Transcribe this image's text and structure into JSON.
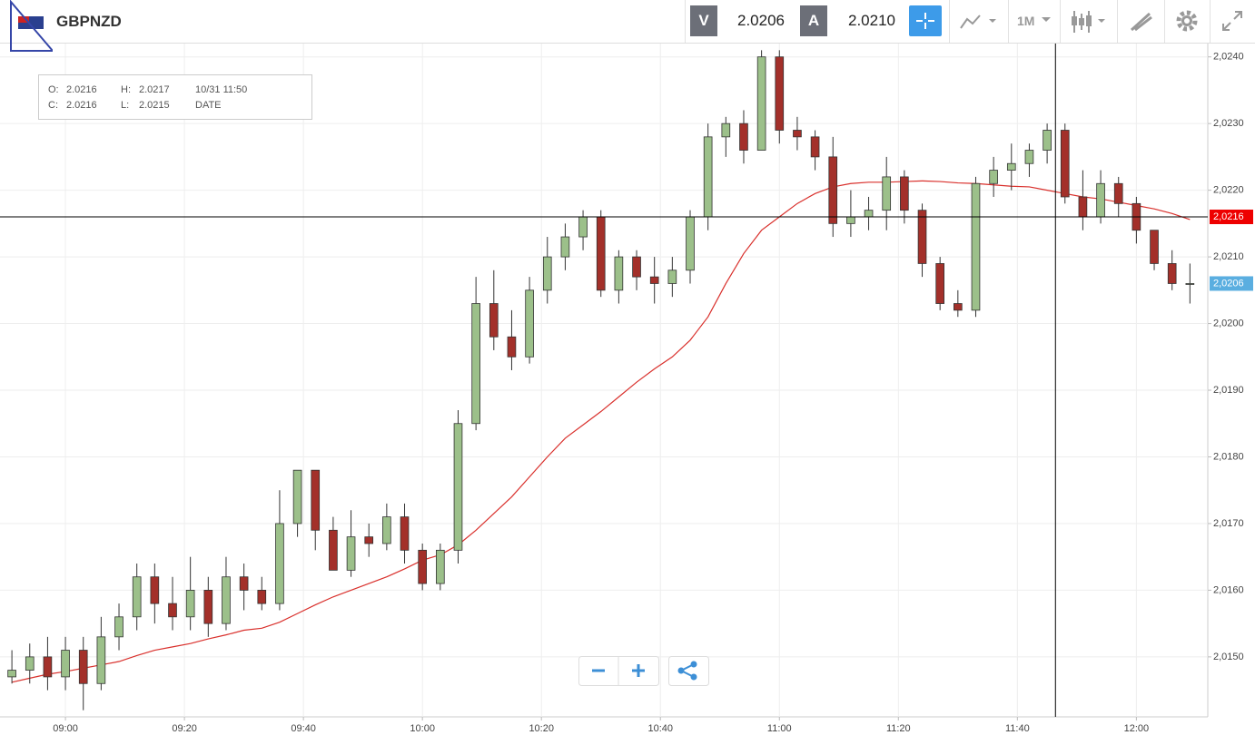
{
  "header": {
    "symbol": "GBPNZD",
    "bid_label": "V",
    "bid": "2.0206",
    "ask_label": "A",
    "ask": "2.0210",
    "period": "1M"
  },
  "info": {
    "open_label": "O:",
    "open": "2.0216",
    "high_label": "H:",
    "high": "2.0217",
    "date": "10/31 11:50",
    "close_label": "C:",
    "close": "2.0216",
    "low_label": "L:",
    "low": "2.0215",
    "date_label": "DATE"
  },
  "chart_data": {
    "type": "candlestick",
    "x": [
      531,
      534,
      537,
      540,
      543,
      546,
      549,
      552,
      555,
      558,
      561,
      564,
      567,
      570,
      573,
      576,
      579,
      582,
      585,
      588,
      591,
      594,
      597,
      600,
      603,
      606,
      609,
      612,
      615,
      618,
      621,
      624,
      627,
      630,
      633,
      636,
      639,
      642,
      645,
      648,
      651,
      654,
      657,
      660,
      663,
      666,
      669,
      672,
      675,
      678,
      681,
      684,
      687,
      690,
      693,
      696,
      699,
      702,
      705,
      708,
      711,
      714,
      717,
      720,
      723,
      726,
      729
    ],
    "open": [
      2.0147,
      2.0148,
      2.015,
      2.0147,
      2.0151,
      2.0146,
      2.0153,
      2.0156,
      2.0162,
      2.0158,
      2.0156,
      2.016,
      2.0155,
      2.0162,
      2.016,
      2.0158,
      2.017,
      2.0178,
      2.0169,
      2.0163,
      2.0168,
      2.0167,
      2.0171,
      2.0166,
      2.0161,
      2.0166,
      2.0185,
      2.0203,
      2.0198,
      2.0195,
      2.0205,
      2.021,
      2.0213,
      2.0216,
      2.0205,
      2.021,
      2.0207,
      2.0206,
      2.0208,
      2.0216,
      2.0228,
      2.023,
      2.0226,
      2.024,
      2.0229,
      2.0228,
      2.0225,
      2.0215,
      2.0216,
      2.0217,
      2.0222,
      2.0217,
      2.0209,
      2.0203,
      2.0202,
      2.0221,
      2.0223,
      2.0224,
      2.0226,
      2.0229,
      2.0219,
      2.0216,
      2.0221,
      2.0218,
      2.0214,
      2.0209,
      2.0206
    ],
    "high": [
      2.0151,
      2.0152,
      2.0153,
      2.0153,
      2.0153,
      2.0156,
      2.0158,
      2.0164,
      2.0164,
      2.0162,
      2.0165,
      2.0162,
      2.0165,
      2.0164,
      2.0162,
      2.0175,
      2.0178,
      2.0178,
      2.0171,
      2.0172,
      2.017,
      2.0173,
      2.0173,
      2.0167,
      2.0167,
      2.0187,
      2.0207,
      2.0208,
      2.0202,
      2.0207,
      2.0213,
      2.0215,
      2.0217,
      2.0217,
      2.0211,
      2.0211,
      2.021,
      2.021,
      2.0217,
      2.023,
      2.0231,
      2.0232,
      2.0241,
      2.0241,
      2.0231,
      2.0229,
      2.0228,
      2.022,
      2.0219,
      2.0225,
      2.0223,
      2.0218,
      2.021,
      2.0205,
      2.0222,
      2.0225,
      2.0227,
      2.0227,
      2.023,
      2.023,
      2.0223,
      2.0223,
      2.0222,
      2.0219,
      2.0214,
      2.0211,
      2.0209
    ],
    "low": [
      2.0146,
      2.0146,
      2.0145,
      2.0145,
      2.0142,
      2.0145,
      2.0151,
      2.0154,
      2.0155,
      2.0154,
      2.0154,
      2.0153,
      2.0154,
      2.0157,
      2.0157,
      2.0157,
      2.0168,
      2.0166,
      2.0163,
      2.0162,
      2.0165,
      2.0166,
      2.0164,
      2.016,
      2.016,
      2.0164,
      2.0184,
      2.0196,
      2.0193,
      2.0194,
      2.0203,
      2.0208,
      2.0211,
      2.0204,
      2.0203,
      2.0205,
      2.0203,
      2.0204,
      2.0206,
      2.0214,
      2.0225,
      2.0224,
      2.0226,
      2.0227,
      2.0226,
      2.0223,
      2.0213,
      2.0213,
      2.0214,
      2.0214,
      2.0215,
      2.0207,
      2.0202,
      2.0201,
      2.0201,
      2.0219,
      2.022,
      2.0222,
      2.0224,
      2.0218,
      2.0214,
      2.0215,
      2.0216,
      2.0212,
      2.0208,
      2.0205,
      2.0203
    ],
    "close": [
      2.0148,
      2.015,
      2.0147,
      2.0151,
      2.0146,
      2.0153,
      2.0156,
      2.0162,
      2.0158,
      2.0156,
      2.016,
      2.0155,
      2.0162,
      2.016,
      2.0158,
      2.017,
      2.0178,
      2.0169,
      2.0163,
      2.0168,
      2.0167,
      2.0171,
      2.0166,
      2.0161,
      2.0166,
      2.0185,
      2.0203,
      2.0198,
      2.0195,
      2.0205,
      2.021,
      2.0213,
      2.0216,
      2.0205,
      2.021,
      2.0207,
      2.0206,
      2.0208,
      2.0216,
      2.0228,
      2.023,
      2.0226,
      2.024,
      2.0229,
      2.0228,
      2.0225,
      2.0215,
      2.0216,
      2.0217,
      2.0222,
      2.0217,
      2.0209,
      2.0203,
      2.0202,
      2.0221,
      2.0223,
      2.0224,
      2.0226,
      2.0229,
      2.0219,
      2.0216,
      2.0221,
      2.0218,
      2.0214,
      2.0209,
      2.0206,
      2.0206
    ],
    "up_color": "#9cc08a",
    "down_color": "#a3302a",
    "moving_average": {
      "color": "#d9302c",
      "values": [
        2.01462,
        2.01468,
        2.01474,
        2.01478,
        2.01483,
        2.01488,
        2.01493,
        2.01502,
        2.0151,
        2.01515,
        2.0152,
        2.01527,
        2.01533,
        2.0154,
        2.01543,
        2.01552,
        2.01565,
        2.01578,
        2.0159,
        2.016,
        2.0161,
        2.0162,
        2.01632,
        2.01645,
        2.01653,
        2.01668,
        2.0169,
        2.01715,
        2.0174,
        2.0177,
        2.018,
        2.01828,
        2.01848,
        2.01868,
        2.0189,
        2.01912,
        2.01932,
        2.0195,
        2.01975,
        2.0201,
        2.0206,
        2.02105,
        2.0214,
        2.0216,
        2.0218,
        2.02195,
        2.02205,
        2.0221,
        2.02212,
        2.02212,
        2.02213,
        2.02214,
        2.02213,
        2.02211,
        2.0221,
        2.02208,
        2.02206,
        2.02205,
        2.022,
        2.02195,
        2.0219,
        2.02187,
        2.02182,
        2.02177,
        2.02172,
        2.02165,
        2.02156
      ]
    },
    "xlim": [
      529,
      732
    ],
    "ylim": [
      2.0141,
      2.0242
    ],
    "xticks": [
      {
        "value": 540,
        "label": "09:00"
      },
      {
        "value": 560,
        "label": "09:20"
      },
      {
        "value": 580,
        "label": "09:40"
      },
      {
        "value": 600,
        "label": "10:00"
      },
      {
        "value": 620,
        "label": "10:20"
      },
      {
        "value": 640,
        "label": "10:40"
      },
      {
        "value": 660,
        "label": "11:00"
      },
      {
        "value": 680,
        "label": "11:20"
      },
      {
        "value": 700,
        "label": "11:40"
      },
      {
        "value": 720,
        "label": "12:00"
      }
    ],
    "yticks": [
      {
        "value": 2.015,
        "label": "2,0150"
      },
      {
        "value": 2.016,
        "label": "2,0160"
      },
      {
        "value": 2.017,
        "label": "2,0170"
      },
      {
        "value": 2.018,
        "label": "2,0180"
      },
      {
        "value": 2.019,
        "label": "2,0190"
      },
      {
        "value": 2.02,
        "label": "2,0200"
      },
      {
        "value": 2.021,
        "label": "2,0210"
      },
      {
        "value": 2.022,
        "label": "2,0220"
      },
      {
        "value": 2.023,
        "label": "2,0230"
      },
      {
        "value": 2.024,
        "label": "2,0240"
      }
    ],
    "grid": true,
    "crosshair": {
      "x": 706.4,
      "price": {
        "value": 2.0216,
        "label": "2,0216"
      }
    },
    "last_price": {
      "value": 2.0206,
      "label": "2,0206"
    }
  }
}
